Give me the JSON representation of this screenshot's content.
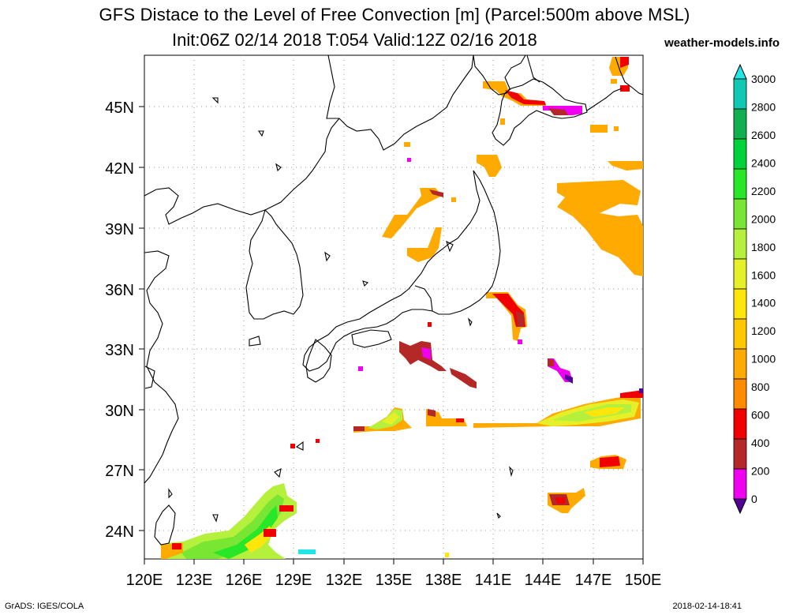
{
  "title": {
    "line1": "GFS Distace to the Level of Free Convection [m] (Parcel:500m above MSL)",
    "line2": "Init:06Z 02/14 2018 T:054 Valid:12Z 02/16 2018",
    "site": "weather-models.info"
  },
  "map": {
    "lon_labels": [
      "120E",
      "123E",
      "126E",
      "129E",
      "132E",
      "135E",
      "138E",
      "141E",
      "144E",
      "147E",
      "150E"
    ],
    "lat_labels": [
      "45N",
      "42N",
      "39N",
      "36N",
      "33N",
      "30N",
      "27N",
      "24N"
    ]
  },
  "colorbar": {
    "levels": [
      "3000",
      "2800",
      "2600",
      "2400",
      "2200",
      "2000",
      "1800",
      "1600",
      "1400",
      "1200",
      "1000",
      "800",
      "600",
      "400",
      "200",
      "0"
    ],
    "colors": [
      "#20e6e6",
      "#10c8b4",
      "#10b050",
      "#00d23c",
      "#28e628",
      "#78e632",
      "#b4f03c",
      "#e6f028",
      "#ffe60a",
      "#ffc800",
      "#ffaa00",
      "#ff8c00",
      "#f00000",
      "#b42828",
      "#f000f0",
      "#500096"
    ]
  },
  "footer": {
    "left": "GrADS: IGES/COLA",
    "right": "2018-02-14-18:41"
  }
}
